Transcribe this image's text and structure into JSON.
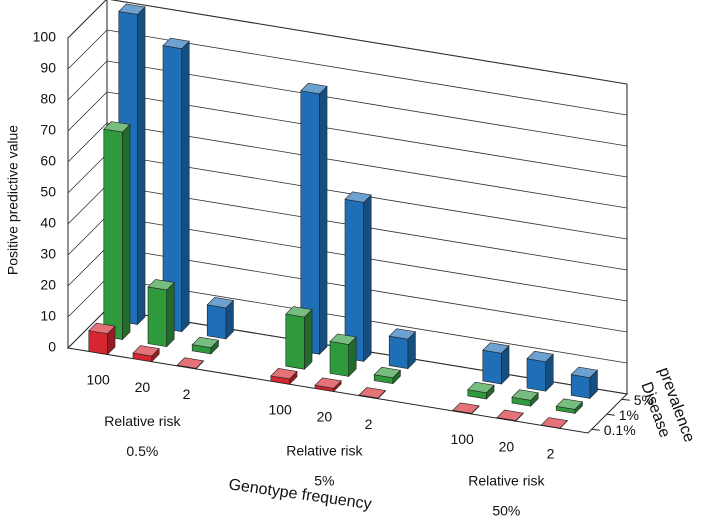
{
  "chart_data": {
    "type": "bar3d",
    "y_label": "Positive predictive value",
    "x_label": "Genotype frequency",
    "z_label": [
      "Disease",
      "prevalence"
    ],
    "categories": [
      "100",
      "20",
      "2",
      "100",
      "20",
      "2",
      "100",
      "20",
      "2"
    ],
    "groups": [
      {
        "label": "Relative risk",
        "sublabel": "0.5%"
      },
      {
        "label": "Relative risk",
        "sublabel": "5%"
      },
      {
        "label": "Relative risk",
        "sublabel": "50%"
      }
    ],
    "series": [
      {
        "name": "0.1%",
        "color": "#d62630",
        "values": [
          6.7,
          1.8,
          0.2,
          1.7,
          1.0,
          0.2,
          0.2,
          0.2,
          0.1
        ]
      },
      {
        "name": "1%",
        "color": "#2f9a3c",
        "values": [
          66.9,
          18.3,
          2.0,
          16.8,
          10.3,
          1.9,
          2.0,
          1.9,
          1.3
        ]
      },
      {
        "name": "5%",
        "color": "#1f6fb6",
        "values": [
          100,
          91.3,
          10.0,
          84.0,
          51.3,
          9.5,
          9.9,
          9.5,
          6.7
        ]
      }
    ],
    "ylim": [
      0,
      100
    ],
    "yticks": [
      0,
      10,
      20,
      30,
      40,
      50,
      60,
      70,
      80,
      90,
      100
    ],
    "grid": true
  }
}
